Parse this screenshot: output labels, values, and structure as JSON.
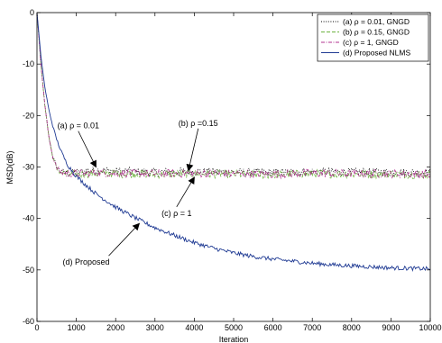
{
  "chart_data": {
    "type": "line",
    "xlabel": "Iteration",
    "ylabel": "MSD(dB)",
    "xlim": [
      0,
      10000
    ],
    "ylim": [
      -60,
      0
    ],
    "xticks": [
      0,
      1000,
      2000,
      3000,
      4000,
      5000,
      6000,
      7000,
      8000,
      9000,
      10000
    ],
    "yticks": [
      0,
      -10,
      -20,
      -30,
      -40,
      -50,
      -60
    ],
    "grid": false,
    "legend_position": "top-right",
    "series": [
      {
        "name": "(a) ρ = 0.01, GNGD",
        "color": "#000000",
        "style": "dotted",
        "x": [
          0,
          100,
          200,
          300,
          400,
          500,
          600,
          700,
          800,
          1000,
          1500,
          2000,
          3000,
          4000,
          5000,
          6000,
          7000,
          8000,
          9000,
          10000
        ],
        "y": [
          0,
          -10,
          -18,
          -24,
          -28,
          -30,
          -30.8,
          -31.1,
          -31.2,
          -31.1,
          -30.6,
          -30.8,
          -31.0,
          -30.9,
          -31.0,
          -31.1,
          -30.9,
          -31.0,
          -31.0,
          -31.1
        ],
        "noise": 0.8
      },
      {
        "name": "(b) ρ = 0.15, GNGD",
        "color": "#6db33f",
        "style": "dashed",
        "x": [
          0,
          100,
          200,
          300,
          400,
          500,
          600,
          700,
          800,
          1000,
          1500,
          2000,
          3000,
          4000,
          5000,
          6000,
          7000,
          8000,
          9000,
          10000
        ],
        "y": [
          0,
          -10,
          -18,
          -24,
          -28,
          -30.3,
          -31.0,
          -31.3,
          -31.4,
          -31.4,
          -31.2,
          -31.3,
          -31.4,
          -31.3,
          -31.4,
          -31.5,
          -31.3,
          -31.4,
          -31.4,
          -31.5
        ],
        "noise": 0.8
      },
      {
        "name": "(c) ρ = 1, GNGD",
        "color": "#b0308f",
        "style": "dashdot",
        "x": [
          0,
          100,
          200,
          300,
          400,
          500,
          600,
          700,
          800,
          1000,
          1500,
          2000,
          3000,
          4000,
          5000,
          6000,
          7000,
          8000,
          9000,
          10000
        ],
        "y": [
          0,
          -10,
          -18,
          -24,
          -28,
          -30.2,
          -30.9,
          -31.2,
          -31.3,
          -31.3,
          -31.1,
          -31.2,
          -31.3,
          -31.2,
          -31.3,
          -31.4,
          -31.2,
          -31.3,
          -31.3,
          -31.4
        ],
        "noise": 0.8
      },
      {
        "name": "(d) Proposed NLMS",
        "color": "#1f3a93",
        "style": "solid",
        "x": [
          0,
          100,
          200,
          300,
          400,
          500,
          600,
          700,
          800,
          1000,
          1200,
          1500,
          2000,
          2500,
          3000,
          3500,
          4000,
          4500,
          5000,
          5500,
          6000,
          6500,
          7000,
          7500,
          8000,
          8500,
          9000,
          9500,
          10000
        ],
        "y": [
          0,
          -8.5,
          -14.5,
          -18.8,
          -22.0,
          -24.6,
          -26.7,
          -28.4,
          -29.8,
          -31.8,
          -33.2,
          -35.2,
          -37.8,
          -39.9,
          -41.8,
          -43.3,
          -44.7,
          -45.8,
          -46.7,
          -47.4,
          -47.9,
          -48.3,
          -48.7,
          -49.0,
          -49.2,
          -49.4,
          -49.6,
          -49.7,
          -49.8
        ],
        "noise": 0.4
      }
    ],
    "annotations": [
      {
        "text": "(a) ρ = 0.01",
        "text_x": 1050,
        "text_y": -22.5,
        "arrow_to_x": 1500,
        "arrow_to_y": -30.0
      },
      {
        "text": "(b) ρ =0.15",
        "text_x": 4100,
        "text_y": -22.0,
        "arrow_to_x": 3850,
        "arrow_to_y": -30.7
      },
      {
        "text": "(c) ρ = 1",
        "text_x": 3550,
        "text_y": -39.5,
        "arrow_to_x": 4000,
        "arrow_to_y": -32.0
      },
      {
        "text": "(d) Proposed",
        "text_x": 1250,
        "text_y": -49.0,
        "arrow_to_x": 2600,
        "arrow_to_y": -41.0
      }
    ]
  }
}
